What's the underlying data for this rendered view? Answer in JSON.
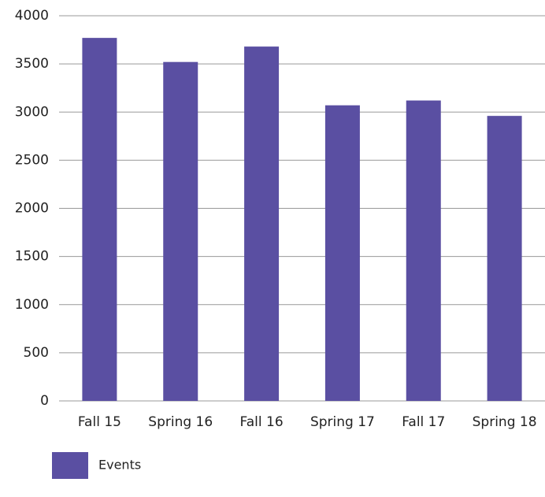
{
  "chart_data": {
    "type": "bar",
    "categories": [
      "Fall 15",
      "Spring 16",
      "Fall 16",
      "Spring 17",
      "Fall 17",
      "Spring 18"
    ],
    "series": [
      {
        "name": "Events",
        "color": "#5a4fa2",
        "values": [
          3770,
          3520,
          3680,
          3070,
          3120,
          2960
        ]
      }
    ],
    "ylim": [
      0,
      4000
    ],
    "yticks": [
      0,
      500,
      1000,
      1500,
      2000,
      2500,
      3000,
      3500,
      4000
    ],
    "grid": true,
    "legend": "bottom-left"
  }
}
